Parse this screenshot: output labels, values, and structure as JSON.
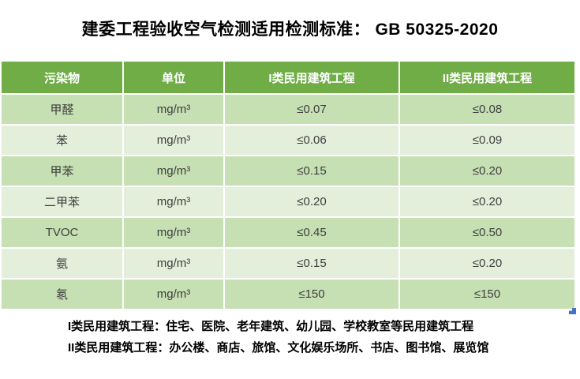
{
  "title": "建委工程验收空气检测适用检测标准： GB 50325-2020",
  "table": {
    "headers": [
      "污染物",
      "单位",
      "I类民用建筑工程",
      "II类民用建筑工程"
    ],
    "rows": [
      [
        "甲醛",
        "mg/m³",
        "≤0.07",
        "≤0.08"
      ],
      [
        "苯",
        "mg/m³",
        "≤0.06",
        "≤0.09"
      ],
      [
        "甲苯",
        "mg/m³",
        "≤0.15",
        "≤0.20"
      ],
      [
        "二甲苯",
        "mg/m³",
        "≤0.20",
        "≤0.20"
      ],
      [
        "TVOC",
        "mg/m³",
        "≤0.45",
        "≤0.50"
      ],
      [
        "氨",
        "mg/m³",
        "≤0.15",
        "≤0.20"
      ],
      [
        "氡",
        "mg/m³",
        "≤150",
        "≤150"
      ]
    ],
    "cell_names": [
      "pollutant-cell",
      "unit-cell",
      "class1-limit-cell",
      "class2-limit-cell"
    ]
  },
  "notes": [
    "I类民用建筑工程：住宅、医院、老年建筑、幼儿园、学校教室等民用建筑工程",
    "II类民用建筑工程：办公楼、商店、旅馆、文化娱乐场所、书店、图书馆、展览馆"
  ],
  "colors": {
    "header_green": "#70AD47",
    "band_dark": "#C6DFB3",
    "band_light": "#E3EFDA",
    "header_text": "#FFFFFF",
    "body_text": "#3F3F3F",
    "title_text": "#000000",
    "handle_blue": "#4472C4"
  }
}
